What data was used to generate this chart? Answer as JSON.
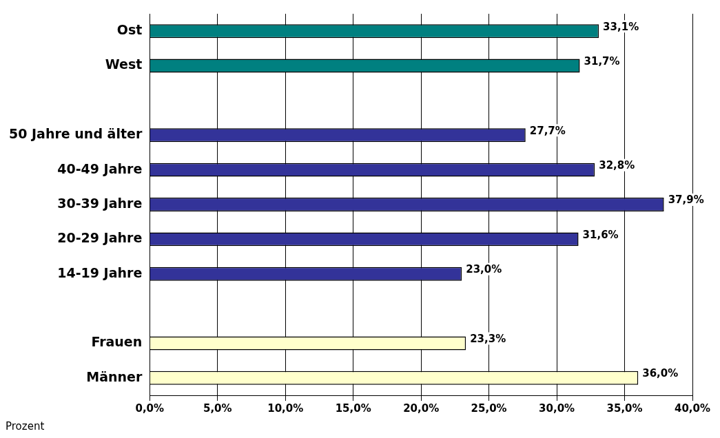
{
  "chart_data": {
    "type": "bar",
    "orientation": "horizontal",
    "xlabel": "Prozent",
    "categories": [
      "Ost",
      "West",
      null,
      "50 Jahre und älter",
      "40-49 Jahre",
      "30-39 Jahre",
      "20-29 Jahre",
      "14-19 Jahre",
      null,
      "Frauen",
      "Männer"
    ],
    "values": [
      33.1,
      31.7,
      null,
      27.7,
      32.8,
      37.9,
      31.6,
      23.0,
      null,
      23.3,
      36.0
    ],
    "colors": [
      "#008080",
      "#008080",
      null,
      "#333399",
      "#333399",
      "#333399",
      "#333399",
      "#333399",
      null,
      "#ffffcc",
      "#ffffcc"
    ],
    "value_labels": [
      "33,1%",
      "31,7%",
      null,
      "27,7%",
      "32,8%",
      "37,9%",
      "31,6%",
      "23,0%",
      null,
      "23,3%",
      "36,0%"
    ],
    "xlim": [
      0,
      40
    ],
    "xticks": [
      {
        "value": 0,
        "label": "0,0%"
      },
      {
        "value": 5,
        "label": "5,0%"
      },
      {
        "value": 10,
        "label": "10,0%"
      },
      {
        "value": 15,
        "label": "15,0%"
      },
      {
        "value": 20,
        "label": "20,0%"
      },
      {
        "value": 25,
        "label": "25,0%"
      },
      {
        "value": 30,
        "label": "30,0%"
      },
      {
        "value": 35,
        "label": "35,0%"
      },
      {
        "value": 40,
        "label": "40,0%"
      }
    ],
    "grid": "x",
    "legend": false
  }
}
